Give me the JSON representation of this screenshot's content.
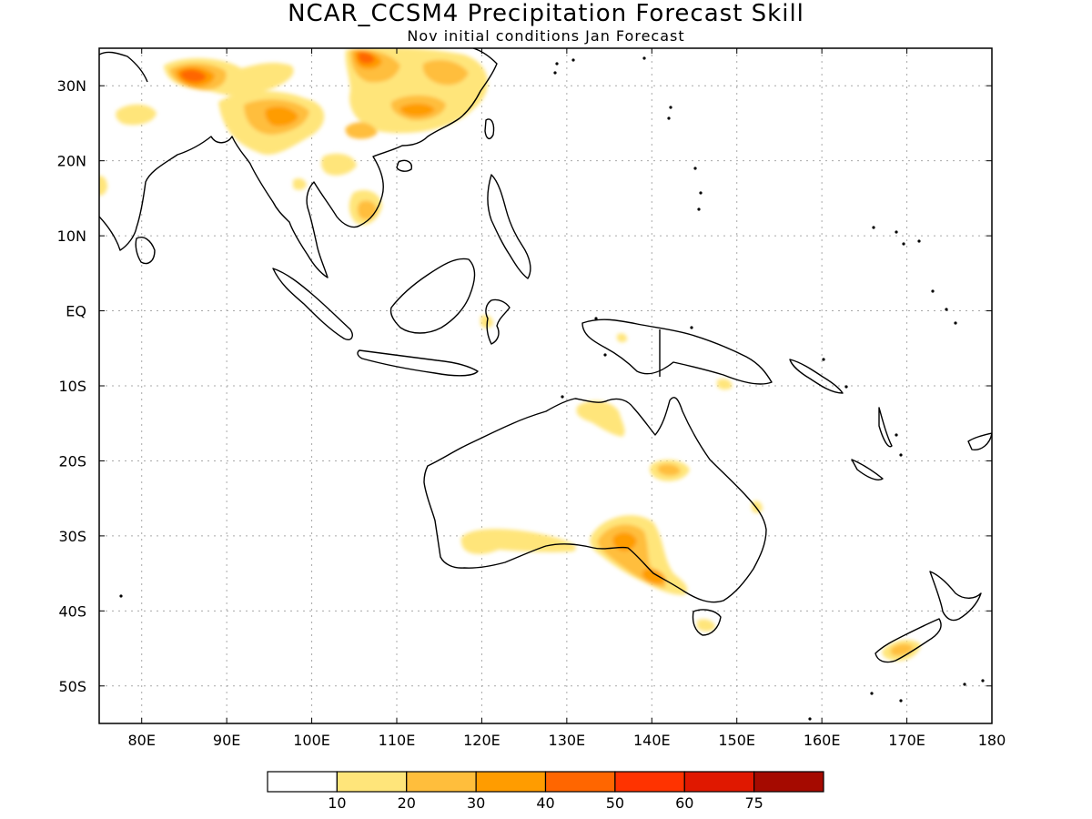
{
  "title": "NCAR_CCSM4 Precipitation Forecast Skill",
  "subtitle": "Nov initial conditions  Jan Forecast",
  "map": {
    "lon_range": [
      75,
      180
    ],
    "lat_range": [
      -55,
      35
    ],
    "lon_ticks": [
      {
        "value": 80,
        "label": "80E"
      },
      {
        "value": 90,
        "label": "90E"
      },
      {
        "value": 100,
        "label": "100E"
      },
      {
        "value": 110,
        "label": "110E"
      },
      {
        "value": 120,
        "label": "120E"
      },
      {
        "value": 130,
        "label": "130E"
      },
      {
        "value": 140,
        "label": "140E"
      },
      {
        "value": 150,
        "label": "150E"
      },
      {
        "value": 160,
        "label": "160E"
      },
      {
        "value": 170,
        "label": "170E"
      },
      {
        "value": 180,
        "label": "180"
      }
    ],
    "lat_ticks": [
      {
        "value": 30,
        "label": "30N"
      },
      {
        "value": 20,
        "label": "20N"
      },
      {
        "value": 10,
        "label": "10N"
      },
      {
        "value": 0,
        "label": "EQ"
      },
      {
        "value": -10,
        "label": "10S"
      },
      {
        "value": -20,
        "label": "20S"
      },
      {
        "value": -30,
        "label": "30S"
      },
      {
        "value": -40,
        "label": "40S"
      },
      {
        "value": -50,
        "label": "50S"
      }
    ]
  },
  "colorbar": {
    "bins": [
      {
        "color": "#ffffff",
        "label": ""
      },
      {
        "color": "#ffe57a",
        "label": "10"
      },
      {
        "color": "#ffbe3c",
        "label": "20"
      },
      {
        "color": "#ff9c00",
        "label": "30"
      },
      {
        "color": "#ff6600",
        "label": "40"
      },
      {
        "color": "#ff3300",
        "label": "50"
      },
      {
        "color": "#e01800",
        "label": "60"
      },
      {
        "color": "#a50a00",
        "label": "75"
      }
    ]
  }
}
